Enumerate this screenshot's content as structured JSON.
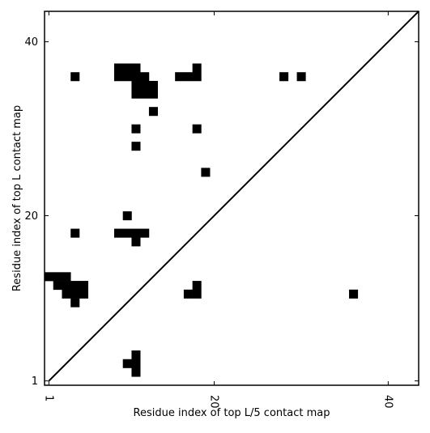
{
  "chart_data": {
    "type": "heatmap",
    "title": "",
    "xlabel": "Residue index of top L/5 contact map",
    "ylabel": "Residue index of top L contact map",
    "xlim": [
      0.5,
      43.5
    ],
    "ylim": [
      0.5,
      43.5
    ],
    "xticks": [
      1,
      20,
      40
    ],
    "yticks": [
      1,
      20,
      40
    ],
    "xtick_labels": [
      "1",
      "20",
      "40"
    ],
    "ytick_labels": [
      "1",
      "20",
      "40"
    ],
    "diagonal": {
      "from": [
        1,
        1
      ],
      "to": [
        43.5,
        43.5
      ]
    },
    "grid": false,
    "legend": "none",
    "colors": {
      "cell": "#000000",
      "background": "#ffffff",
      "line": "#000000"
    },
    "cells": [
      [
        4,
        36
      ],
      [
        9,
        36
      ],
      [
        10,
        36
      ],
      [
        11,
        36
      ],
      [
        9,
        37
      ],
      [
        10,
        37
      ],
      [
        11,
        37
      ],
      [
        12,
        36
      ],
      [
        11,
        35
      ],
      [
        12,
        35
      ],
      [
        13,
        35
      ],
      [
        11,
        34
      ],
      [
        12,
        34
      ],
      [
        13,
        34
      ],
      [
        16,
        36
      ],
      [
        17,
        36
      ],
      [
        18,
        36
      ],
      [
        18,
        37
      ],
      [
        28,
        36
      ],
      [
        30,
        36
      ],
      [
        13,
        32
      ],
      [
        11,
        30
      ],
      [
        18,
        30
      ],
      [
        11,
        28
      ],
      [
        19,
        25
      ],
      [
        10,
        20
      ],
      [
        4,
        18
      ],
      [
        9,
        18
      ],
      [
        10,
        18
      ],
      [
        11,
        18
      ],
      [
        12,
        18
      ],
      [
        11,
        17
      ],
      [
        1,
        13
      ],
      [
        2,
        13
      ],
      [
        3,
        13
      ],
      [
        2,
        12
      ],
      [
        3,
        12
      ],
      [
        4,
        12
      ],
      [
        5,
        12
      ],
      [
        3,
        11
      ],
      [
        4,
        11
      ],
      [
        5,
        11
      ],
      [
        4,
        10
      ],
      [
        18,
        12
      ],
      [
        17,
        11
      ],
      [
        18,
        11
      ],
      [
        36,
        11
      ],
      [
        11,
        4
      ],
      [
        10,
        3
      ],
      [
        11,
        3
      ],
      [
        11,
        2
      ]
    ]
  }
}
